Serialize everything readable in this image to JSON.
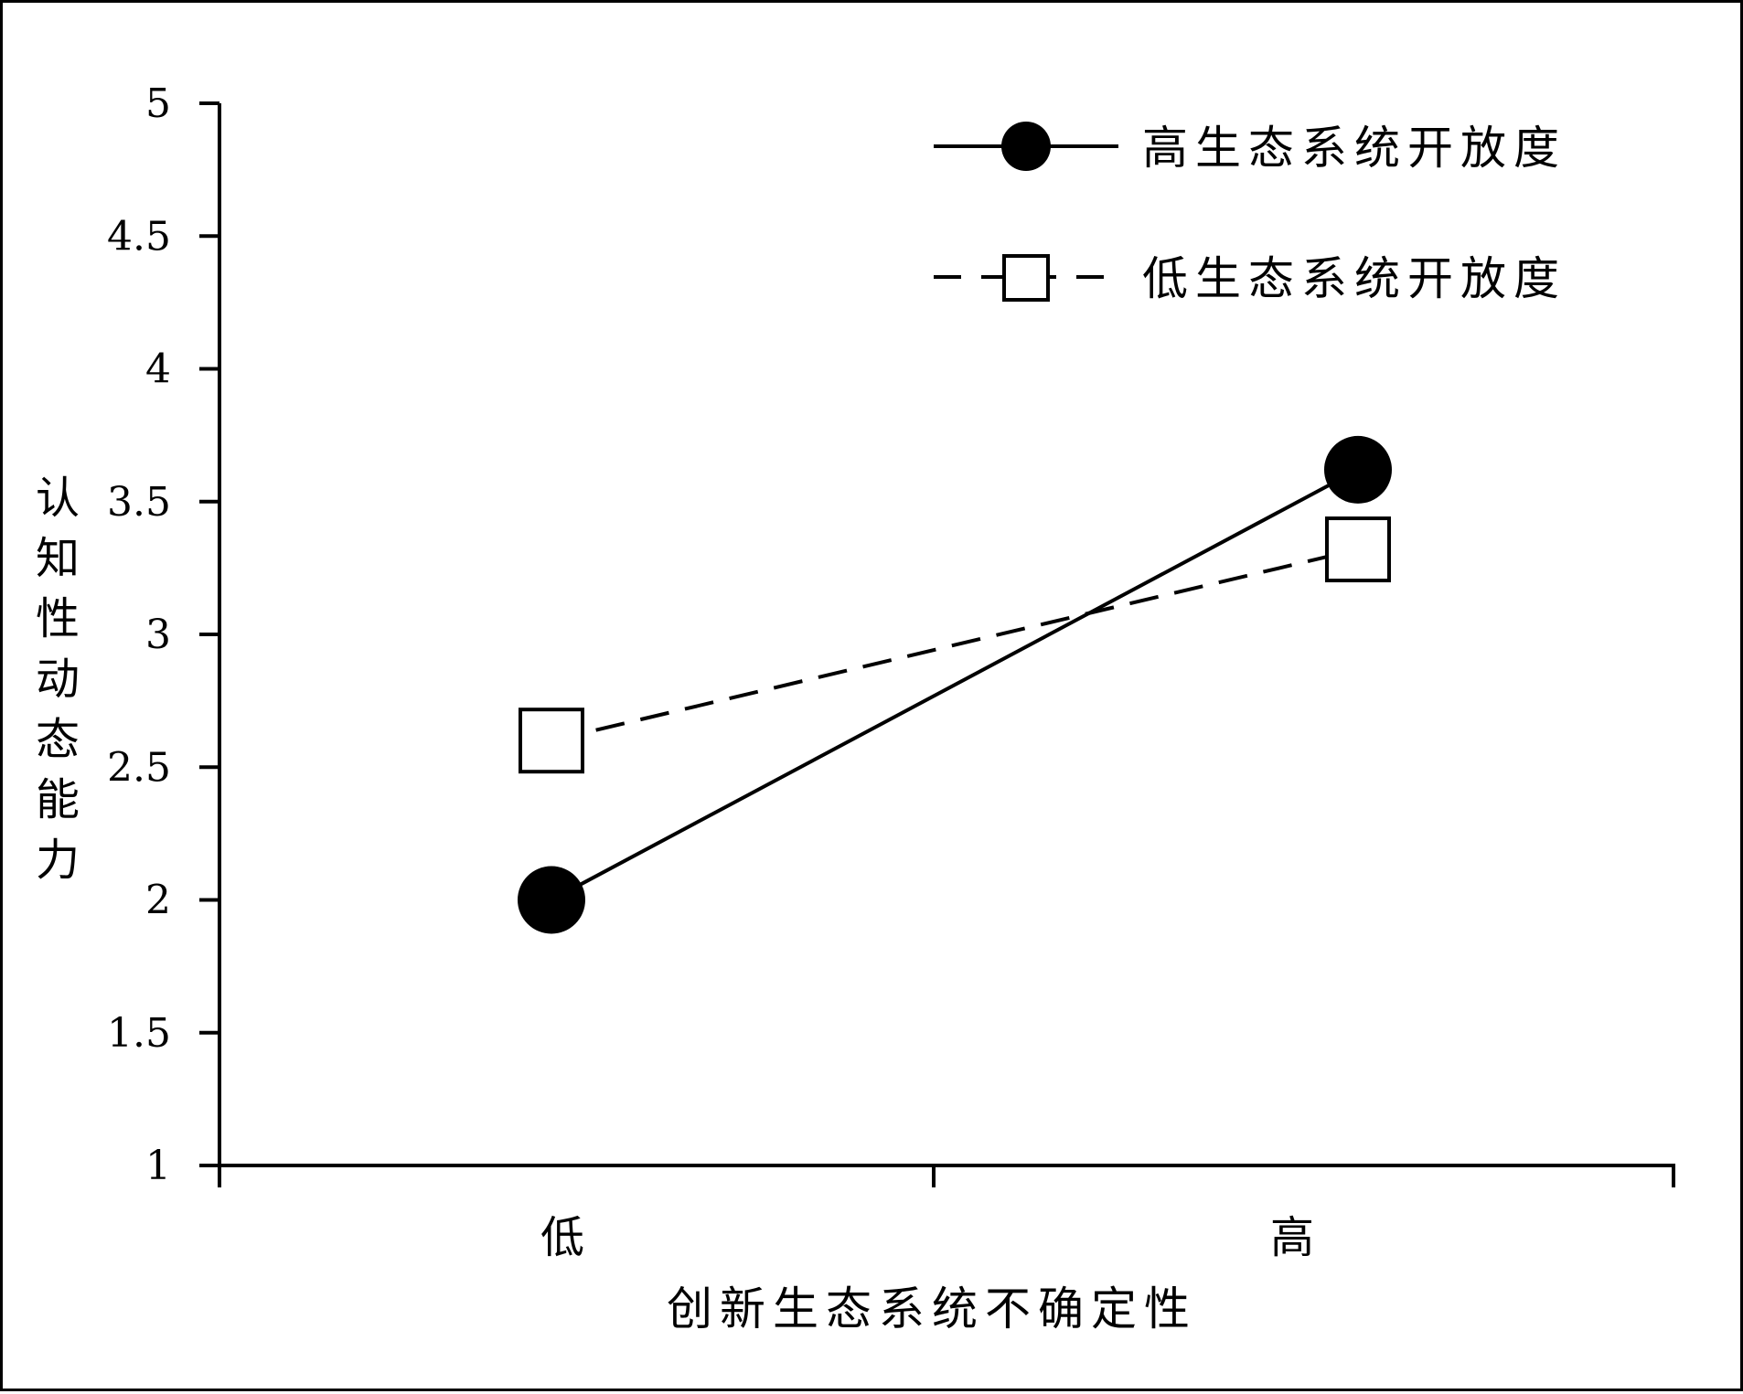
{
  "chart_data": {
    "type": "line",
    "title": "",
    "xlabel": "创新生态系统不确定性",
    "ylabel": "认知性动态能力",
    "categories": [
      "低",
      "高"
    ],
    "ylim": [
      1,
      5
    ],
    "yticks": [
      "1",
      "1.5",
      "2",
      "2.5",
      "3",
      "3.5",
      "4",
      "4.5",
      "5"
    ],
    "grid": false,
    "legend_position": "top-right",
    "series": [
      {
        "name": "高生态系统开放度",
        "values": [
          2.0,
          3.62
        ],
        "line_style": "solid",
        "marker": "filled-circle",
        "color": "#000000"
      },
      {
        "name": "低生态系统开放度",
        "values": [
          2.6,
          3.32
        ],
        "line_style": "dashed",
        "marker": "hollow-square",
        "color": "#000000"
      }
    ]
  }
}
